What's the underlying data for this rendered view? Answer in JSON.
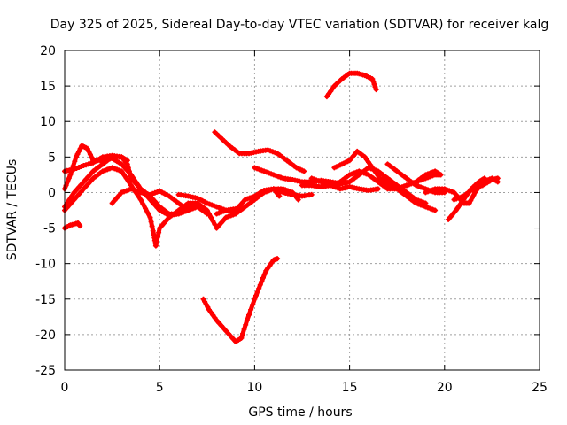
{
  "chart_data": {
    "type": "scatter",
    "title": "Day 325 of 2025, Sidereal Day-to-day VTEC variation (SDTVAR) for receiver kalg",
    "xlabel": "GPS time / hours",
    "ylabel": "SDTVAR / TECUs",
    "xlim": [
      0,
      25
    ],
    "ylim": [
      -25,
      20
    ],
    "xticks": [
      0,
      5,
      10,
      15,
      20,
      25
    ],
    "yticks": [
      -25,
      -20,
      -15,
      -10,
      -5,
      0,
      5,
      10,
      15,
      20
    ],
    "grid": true,
    "marker_color": "#ff0000",
    "series": [
      {
        "name": "trace-1",
        "points": [
          [
            0.0,
            -5.0
          ],
          [
            0.3,
            -4.6
          ],
          [
            0.7,
            -4.3
          ],
          [
            0.8,
            -4.7
          ]
        ]
      },
      {
        "name": "trace-2",
        "points": [
          [
            0.0,
            0.5
          ],
          [
            0.3,
            2.5
          ],
          [
            0.6,
            5.0
          ],
          [
            0.9,
            6.6
          ],
          [
            1.2,
            6.2
          ],
          [
            1.5,
            4.5
          ],
          [
            2.0,
            4.5
          ],
          [
            2.5,
            4.8
          ],
          [
            3.0,
            4.0
          ],
          [
            3.5,
            2.5
          ],
          [
            4.0,
            0.5
          ],
          [
            4.5,
            -1.0
          ],
          [
            5.0,
            -2.5
          ],
          [
            5.5,
            -3.2
          ],
          [
            6.0,
            -3.0
          ],
          [
            6.5,
            -2.5
          ],
          [
            7.0,
            -2.0
          ],
          [
            7.5,
            -3.0
          ]
        ]
      },
      {
        "name": "trace-3",
        "points": [
          [
            0.0,
            -2.5
          ],
          [
            0.5,
            -1.0
          ],
          [
            1.0,
            0.5
          ],
          [
            1.5,
            2.0
          ],
          [
            2.0,
            3.0
          ],
          [
            2.5,
            3.5
          ],
          [
            3.0,
            3.0
          ],
          [
            3.5,
            1.0
          ],
          [
            4.0,
            -1.0
          ],
          [
            4.5,
            -3.5
          ],
          [
            4.7,
            -6.0
          ],
          [
            4.8,
            -7.5
          ],
          [
            5.0,
            -5.0
          ],
          [
            5.5,
            -3.5
          ],
          [
            6.0,
            -2.5
          ],
          [
            6.5,
            -1.5
          ],
          [
            7.0,
            -1.5
          ],
          [
            7.5,
            -2.5
          ],
          [
            7.9,
            -4.5
          ]
        ]
      },
      {
        "name": "trace-4",
        "points": [
          [
            0.0,
            -2.0
          ],
          [
            0.5,
            0.0
          ],
          [
            1.0,
            1.5
          ],
          [
            1.5,
            3.0
          ],
          [
            2.0,
            4.0
          ],
          [
            2.5,
            5.0
          ],
          [
            3.0,
            5.0
          ],
          [
            3.3,
            4.0
          ],
          [
            3.5,
            2.0
          ],
          [
            4.0,
            0.5
          ],
          [
            4.5,
            -0.5
          ],
          [
            5.0,
            -2.0
          ],
          [
            5.5,
            -3.0
          ],
          [
            6.0,
            -3.0
          ],
          [
            6.5,
            -2.0
          ],
          [
            7.0,
            -1.5
          ]
        ]
      },
      {
        "name": "trace-5",
        "points": [
          [
            0.0,
            3.0
          ],
          [
            0.5,
            3.3
          ],
          [
            1.0,
            3.8
          ],
          [
            1.5,
            4.2
          ],
          [
            2.0,
            5.0
          ],
          [
            2.5,
            5.2
          ],
          [
            3.0,
            5.0
          ],
          [
            3.3,
            4.5
          ]
        ]
      },
      {
        "name": "trace-6",
        "points": [
          [
            2.5,
            -1.5
          ],
          [
            3.0,
            0.0
          ],
          [
            3.5,
            0.5
          ],
          [
            4.0,
            0.0
          ],
          [
            4.5,
            -0.3
          ],
          [
            5.0,
            0.2
          ],
          [
            5.5,
            -0.5
          ],
          [
            6.0,
            -1.5
          ],
          [
            6.5,
            -2.5
          ],
          [
            7.0,
            -1.8
          ]
        ]
      },
      {
        "name": "trace-7",
        "points": [
          [
            6.0,
            -0.3
          ],
          [
            6.5,
            -0.5
          ],
          [
            7.0,
            -0.8
          ],
          [
            7.5,
            -1.5
          ],
          [
            8.0,
            -2.0
          ],
          [
            8.5,
            -2.5
          ],
          [
            9.0,
            -2.3
          ]
        ]
      },
      {
        "name": "trace-8",
        "points": [
          [
            8.0,
            -5.0
          ],
          [
            8.5,
            -3.5
          ],
          [
            9.0,
            -3.0
          ],
          [
            9.5,
            -2.0
          ],
          [
            10.0,
            -1.0
          ],
          [
            10.5,
            0.0
          ],
          [
            11.0,
            0.5
          ],
          [
            11.5,
            0.5
          ],
          [
            12.0,
            0.0
          ],
          [
            12.3,
            -1.0
          ]
        ]
      },
      {
        "name": "trace-9",
        "points": [
          [
            8.0,
            -3.0
          ],
          [
            8.5,
            -2.5
          ],
          [
            9.0,
            -2.5
          ],
          [
            9.5,
            -1.0
          ],
          [
            10.0,
            -0.5
          ],
          [
            10.5,
            0.3
          ],
          [
            11.0,
            0.5
          ],
          [
            11.3,
            -0.5
          ]
        ]
      },
      {
        "name": "trace-10",
        "points": [
          [
            7.3,
            -15.0
          ],
          [
            7.6,
            -16.5
          ],
          [
            8.0,
            -18.0
          ],
          [
            8.5,
            -19.5
          ],
          [
            9.0,
            -21.0
          ],
          [
            9.3,
            -20.5
          ],
          [
            9.6,
            -18.0
          ],
          [
            10.0,
            -15.0
          ],
          [
            10.3,
            -13.0
          ],
          [
            10.6,
            -11.0
          ],
          [
            11.0,
            -9.5
          ],
          [
            11.2,
            -9.3
          ]
        ]
      },
      {
        "name": "trace-11",
        "points": [
          [
            7.9,
            8.5
          ],
          [
            8.3,
            7.5
          ],
          [
            8.7,
            6.5
          ],
          [
            9.2,
            5.5
          ],
          [
            9.7,
            5.5
          ],
          [
            10.2,
            5.8
          ],
          [
            10.7,
            6.0
          ],
          [
            11.2,
            5.5
          ],
          [
            11.7,
            4.5
          ],
          [
            12.2,
            3.5
          ],
          [
            12.6,
            3.0
          ]
        ]
      },
      {
        "name": "trace-12",
        "points": [
          [
            10.0,
            3.5
          ],
          [
            10.5,
            3.0
          ],
          [
            11.0,
            2.5
          ],
          [
            11.5,
            2.0
          ],
          [
            12.0,
            1.8
          ],
          [
            12.5,
            1.5
          ],
          [
            13.0,
            1.5
          ],
          [
            13.5,
            1.7
          ],
          [
            14.0,
            1.5
          ],
          [
            14.5,
            1.3
          ]
        ]
      },
      {
        "name": "trace-13",
        "points": [
          [
            11.0,
            0.5
          ],
          [
            11.5,
            0.0
          ],
          [
            12.0,
            -0.3
          ],
          [
            12.5,
            -0.5
          ],
          [
            13.0,
            -0.3
          ]
        ]
      },
      {
        "name": "trace-14",
        "points": [
          [
            13.8,
            13.5
          ],
          [
            14.2,
            15.0
          ],
          [
            14.6,
            16.0
          ],
          [
            15.0,
            16.8
          ],
          [
            15.4,
            16.8
          ],
          [
            15.8,
            16.5
          ],
          [
            16.2,
            16.0
          ],
          [
            16.4,
            14.5
          ]
        ]
      },
      {
        "name": "trace-15",
        "points": [
          [
            13.0,
            2.0
          ],
          [
            13.5,
            1.5
          ],
          [
            14.0,
            1.0
          ],
          [
            14.5,
            1.5
          ],
          [
            15.0,
            2.5
          ],
          [
            15.5,
            3.0
          ],
          [
            16.0,
            2.5
          ],
          [
            16.5,
            1.5
          ],
          [
            17.0,
            0.5
          ],
          [
            17.5,
            0.5
          ],
          [
            18.0,
            1.0
          ],
          [
            18.5,
            1.5
          ],
          [
            19.0,
            2.0
          ],
          [
            19.5,
            2.5
          ],
          [
            19.8,
            2.5
          ]
        ]
      },
      {
        "name": "trace-16",
        "points": [
          [
            14.2,
            3.5
          ],
          [
            14.6,
            4.0
          ],
          [
            15.0,
            4.5
          ],
          [
            15.4,
            5.8
          ],
          [
            15.8,
            5.0
          ],
          [
            16.2,
            3.5
          ],
          [
            16.6,
            2.0
          ],
          [
            17.0,
            1.5
          ],
          [
            17.5,
            0.5
          ],
          [
            18.0,
            -0.5
          ],
          [
            18.5,
            -1.5
          ],
          [
            19.0,
            -2.0
          ],
          [
            19.5,
            -2.5
          ]
        ]
      },
      {
        "name": "trace-17",
        "points": [
          [
            14.0,
            1.0
          ],
          [
            14.5,
            1.2
          ],
          [
            15.0,
            1.5
          ],
          [
            15.5,
            2.5
          ],
          [
            16.0,
            3.5
          ],
          [
            16.5,
            3.0
          ],
          [
            17.0,
            2.0
          ],
          [
            17.5,
            1.0
          ],
          [
            18.0,
            0.0
          ],
          [
            18.5,
            -1.0
          ],
          [
            19.0,
            -1.5
          ]
        ]
      },
      {
        "name": "trace-18",
        "points": [
          [
            12.5,
            1.0
          ],
          [
            13.0,
            1.0
          ],
          [
            13.5,
            0.8
          ],
          [
            14.0,
            1.0
          ],
          [
            14.5,
            0.5
          ],
          [
            15.0,
            0.8
          ],
          [
            15.5,
            0.5
          ],
          [
            16.0,
            0.3
          ],
          [
            16.5,
            0.5
          ]
        ]
      },
      {
        "name": "trace-19",
        "points": [
          [
            17.0,
            4.0
          ],
          [
            17.5,
            3.0
          ],
          [
            18.0,
            2.0
          ],
          [
            18.5,
            1.0
          ],
          [
            19.0,
            0.5
          ],
          [
            19.5,
            0.0
          ],
          [
            20.0,
            0.0
          ]
        ]
      },
      {
        "name": "trace-20",
        "points": [
          [
            16.5,
            1.5
          ],
          [
            17.0,
            1.0
          ],
          [
            17.5,
            0.5
          ],
          [
            18.0,
            1.0
          ],
          [
            18.5,
            1.5
          ],
          [
            19.0,
            2.5
          ],
          [
            19.5,
            3.0
          ],
          [
            19.8,
            2.5
          ]
        ]
      },
      {
        "name": "trace-21",
        "points": [
          [
            19.0,
            0.0
          ],
          [
            19.5,
            0.5
          ],
          [
            20.0,
            0.5
          ],
          [
            20.5,
            0.0
          ],
          [
            21.0,
            -1.5
          ],
          [
            21.3,
            -1.5
          ],
          [
            21.6,
            0.0
          ],
          [
            22.0,
            1.5
          ],
          [
            22.5,
            2.0
          ],
          [
            22.8,
            1.5
          ]
        ]
      },
      {
        "name": "trace-22",
        "points": [
          [
            20.2,
            -3.8
          ],
          [
            20.6,
            -2.5
          ],
          [
            21.0,
            -1.0
          ],
          [
            21.4,
            0.5
          ],
          [
            21.8,
            1.5
          ],
          [
            22.1,
            2.0
          ]
        ]
      },
      {
        "name": "trace-23",
        "points": [
          [
            20.5,
            -1.0
          ],
          [
            21.0,
            -0.5
          ],
          [
            21.5,
            0.5
          ],
          [
            22.0,
            1.0
          ],
          [
            22.5,
            1.8
          ],
          [
            22.8,
            2.0
          ]
        ]
      }
    ]
  }
}
